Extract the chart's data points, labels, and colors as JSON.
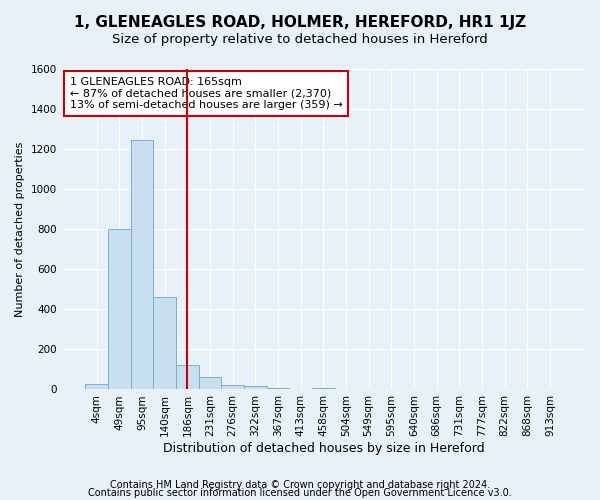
{
  "title": "1, GLENEAGLES ROAD, HOLMER, HEREFORD, HR1 1JZ",
  "subtitle": "Size of property relative to detached houses in Hereford",
  "xlabel": "Distribution of detached houses by size in Hereford",
  "ylabel": "Number of detached properties",
  "categories": [
    "4sqm",
    "49sqm",
    "95sqm",
    "140sqm",
    "186sqm",
    "231sqm",
    "276sqm",
    "322sqm",
    "367sqm",
    "413sqm",
    "458sqm",
    "504sqm",
    "549sqm",
    "595sqm",
    "640sqm",
    "686sqm",
    "731sqm",
    "777sqm",
    "822sqm",
    "868sqm",
    "913sqm"
  ],
  "values": [
    25,
    800,
    1245,
    460,
    120,
    60,
    20,
    15,
    8,
    0,
    8,
    0,
    0,
    0,
    0,
    0,
    0,
    0,
    0,
    0,
    0
  ],
  "bar_color": "#c8dff0",
  "bar_edge_color": "#7aafd4",
  "vline_x": 4.0,
  "vline_color": "#cc0000",
  "annotation_text": "1 GLENEAGLES ROAD: 165sqm\n← 87% of detached houses are smaller (2,370)\n13% of semi-detached houses are larger (359) →",
  "annotation_box_color": "#ffffff",
  "annotation_box_edge": "#cc0000",
  "ylim": [
    0,
    1600
  ],
  "yticks": [
    0,
    200,
    400,
    600,
    800,
    1000,
    1200,
    1400,
    1600
  ],
  "footer1": "Contains HM Land Registry data © Crown copyright and database right 2024.",
  "footer2": "Contains public sector information licensed under the Open Government Licence v3.0.",
  "background_color": "#e8f0f8",
  "plot_bg_color": "#e8f0f8",
  "grid_color": "#ffffff",
  "title_fontsize": 11,
  "subtitle_fontsize": 9.5,
  "xlabel_fontsize": 9,
  "ylabel_fontsize": 8,
  "footer_fontsize": 7,
  "tick_labelsize": 7.5,
  "annot_fontsize": 8
}
